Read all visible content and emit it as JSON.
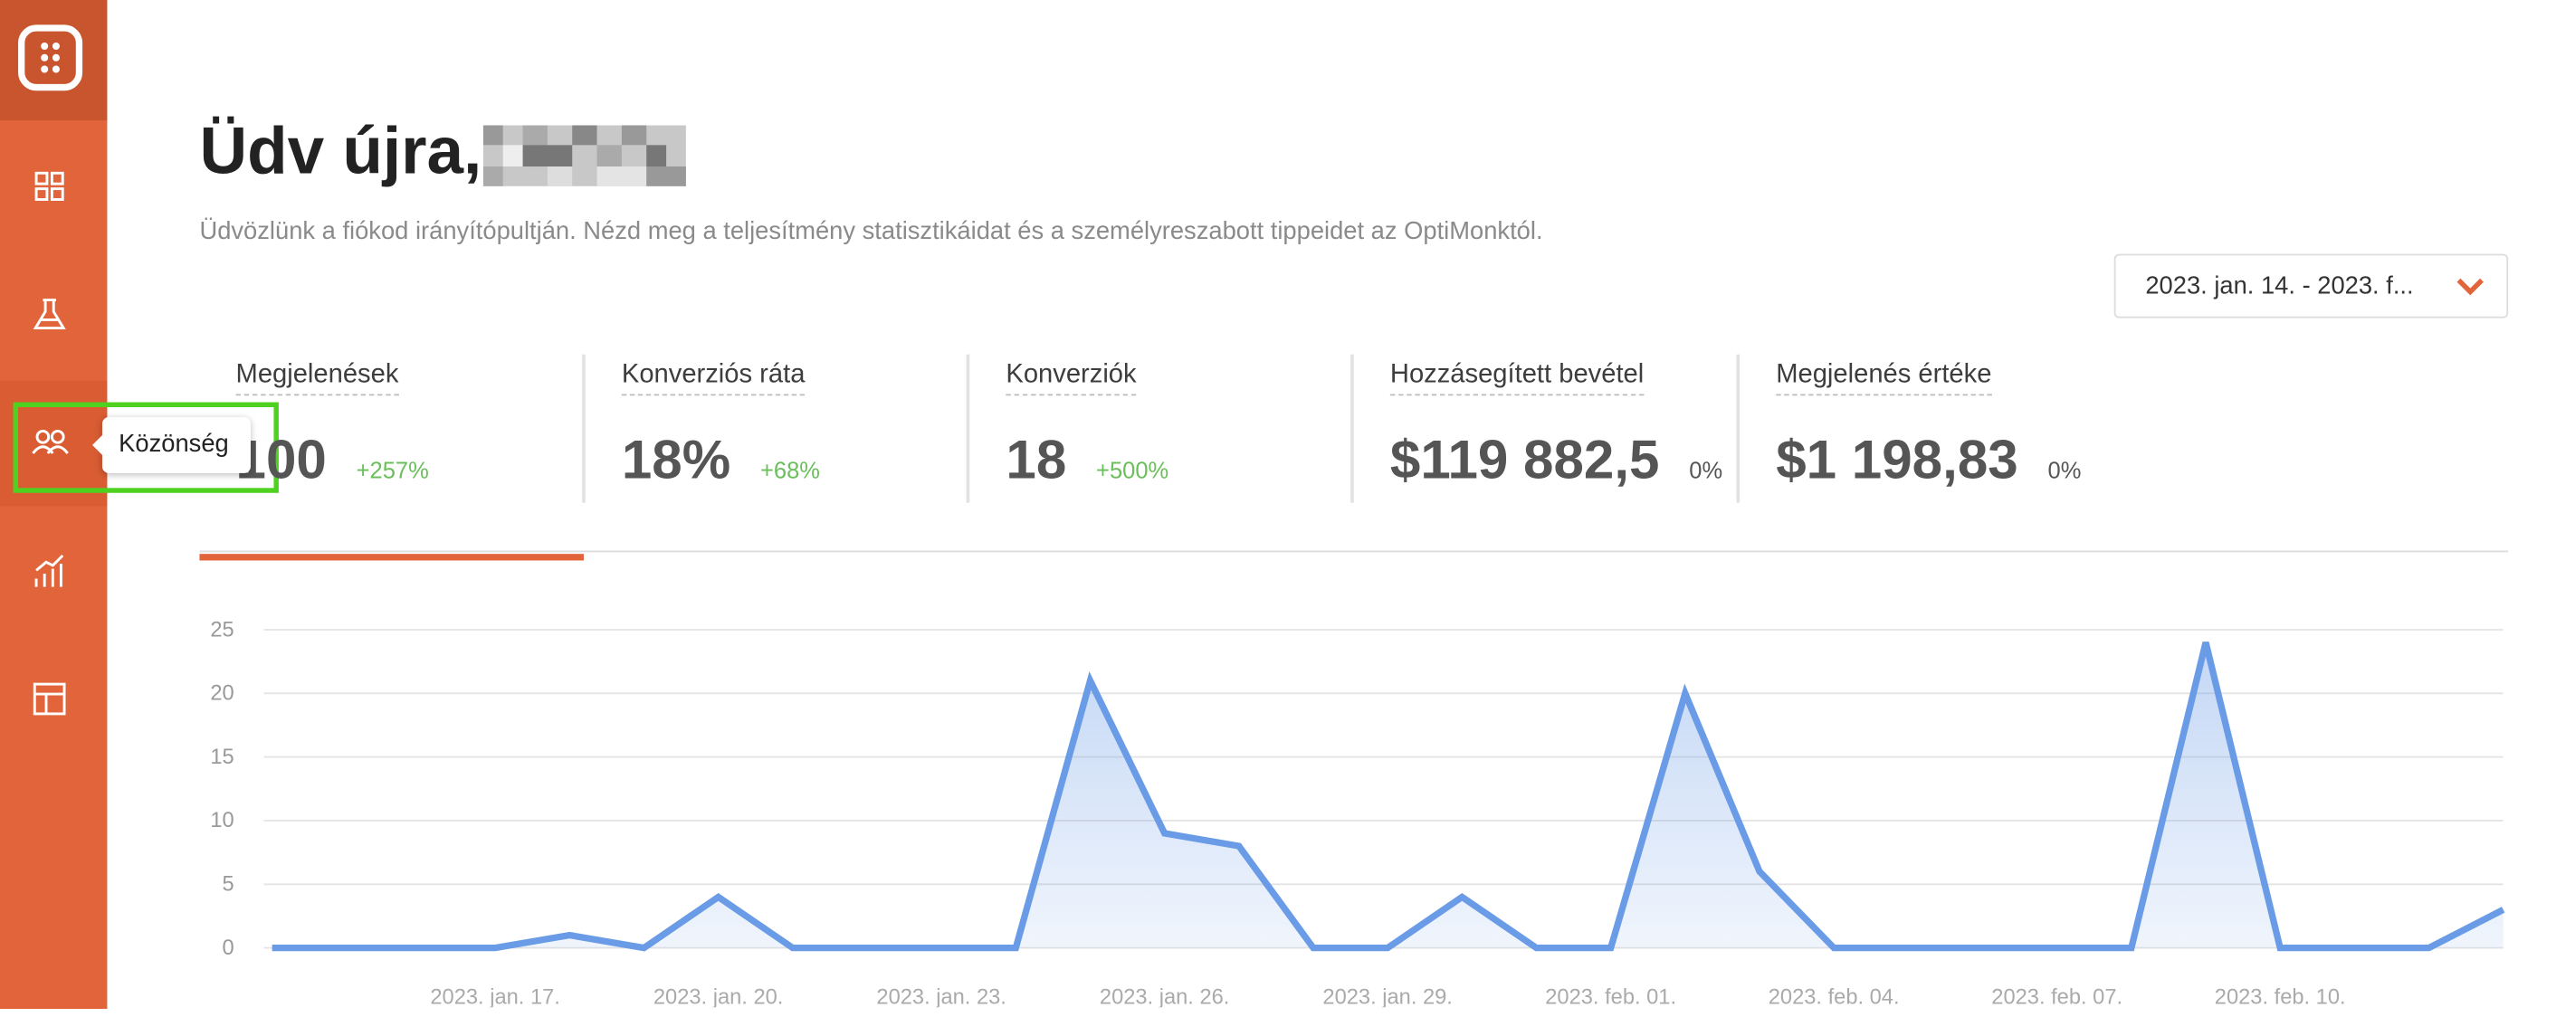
{
  "header": {
    "title": "Üdv újra,",
    "subtitle": "Üdvözlünk a fiókod irányítópultján. Nézd meg a teljesítmény statisztikáidat és a személyreszabott tippeidet az OptiMonktól."
  },
  "sidebar": {
    "tooltip": "Közönség"
  },
  "date_range": "2023. jan. 14. - 2023. f...",
  "metrics": [
    {
      "label": "Megjelenések",
      "value": "100",
      "change": "+257%"
    },
    {
      "label": "Konverziós ráta",
      "value": "18%",
      "change": "+68%"
    },
    {
      "label": "Konverziók",
      "value": "18",
      "change": "+500%"
    },
    {
      "label": "Hozzásegített bevétel",
      "value": "$119 882,5",
      "change": "0%"
    },
    {
      "label": "Megjelenés értéke",
      "value": "$1 198,83",
      "change": "0%"
    }
  ],
  "chart_data": {
    "type": "area",
    "categories": [
      null,
      null,
      null,
      "2023. jan. 17.",
      null,
      null,
      "2023. jan. 20.",
      null,
      null,
      "2023. jan. 23.",
      null,
      null,
      "2023. jan. 26.",
      null,
      null,
      "2023. jan. 29.",
      null,
      null,
      "2023. feb. 01.",
      null,
      null,
      "2023. feb. 04.",
      null,
      null,
      "2023. feb. 07.",
      null,
      null,
      "2023. feb. 10.",
      null,
      null,
      null
    ],
    "values": [
      0,
      0,
      0,
      0,
      1,
      0,
      4,
      0,
      0,
      0,
      0,
      21,
      9,
      8,
      0,
      0,
      4,
      0,
      0,
      20,
      6,
      0,
      0,
      0,
      0,
      0,
      24,
      0,
      0,
      0,
      3
    ],
    "color": "#6a9be6",
    "ylim": [
      0,
      25
    ],
    "yticks": [
      0,
      5,
      10,
      15,
      20,
      25
    ],
    "grid": true
  }
}
